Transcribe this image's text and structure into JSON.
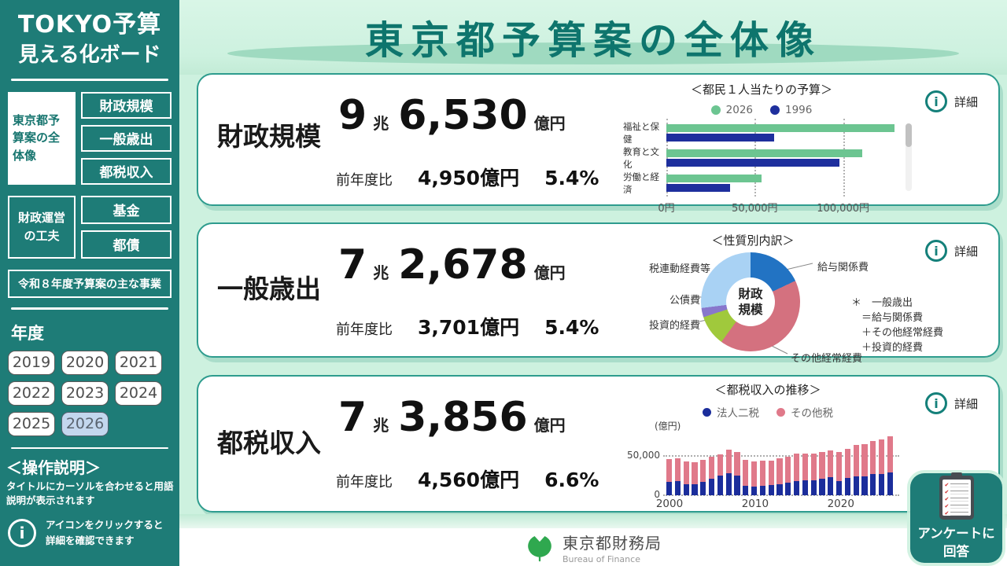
{
  "app": {
    "title_line1": "TOKYO予算",
    "title_line2": "見える化ボード"
  },
  "sidebar": {
    "nav_current": "東京都予算案の全体像",
    "nav_items": [
      "財政規模",
      "一般歳出",
      "都税収入"
    ],
    "nav_group2_label": "財政運営の工夫",
    "nav_group2_items": [
      "基金",
      "都債"
    ],
    "nav_wide_item": "令和８年度予算案の主な事業",
    "year_label": "年度",
    "years": [
      "2019",
      "2020",
      "2021",
      "2022",
      "2023",
      "2024",
      "2025",
      "2026"
    ],
    "selected_year": "2026",
    "help_title": "＜操作説明＞",
    "help_text": "タイトルにカーソルを合わせると用語説明が表示されます",
    "help_icon_text1": "アイコンをクリックすると",
    "help_icon_text2": "詳細を確認できます"
  },
  "header": {
    "title": "東京都予算案の全体像"
  },
  "cards": [
    {
      "label": "財政規模",
      "cho": "9",
      "unit_cho": "兆",
      "oku": "6,530",
      "unit_oku": "億円",
      "yoy_label": "前年度比",
      "yoy_amount": "4,950億円",
      "yoy_pct": "5.4%",
      "detail_label": "詳細"
    },
    {
      "label": "一般歳出",
      "cho": "7",
      "unit_cho": "兆",
      "oku": "2,678",
      "unit_oku": "億円",
      "yoy_label": "前年度比",
      "yoy_amount": "3,701億円",
      "yoy_pct": "5.4%",
      "detail_label": "詳細"
    },
    {
      "label": "都税収入",
      "cho": "7",
      "unit_cho": "兆",
      "oku": "3,856",
      "unit_oku": "億円",
      "yoy_label": "前年度比",
      "yoy_amount": "4,560億円",
      "yoy_pct": "6.6%",
      "detail_label": "詳細"
    }
  ],
  "note": {
    "lines": [
      "＊　一般歳出",
      "＝給与関係費",
      "＋その他経常経費",
      "＋投資的経費"
    ]
  },
  "footer": {
    "org": "東京都財務局",
    "org_en": "Bureau of Finance"
  },
  "survey": {
    "line1": "アンケートに",
    "line2": "回答"
  },
  "colors": {
    "sidebar_teal": "#1E7C77",
    "main_bg": "#CDF1DF",
    "title_teal": "#0E756D",
    "card_border": "#2E9C8E",
    "info_teal": "#14807A",
    "year_selected": "#C3D7EE",
    "logo_green": "#2FA84F"
  },
  "chart_data": [
    {
      "type": "bar",
      "orientation": "horizontal",
      "title": "＜都民１人当たりの予算＞",
      "categories": [
        "福祉と保健",
        "教育と文化",
        "労働と経済"
      ],
      "series": [
        {
          "name": "2026",
          "color": "#6CC591",
          "values": [
            129000,
            111000,
            54000
          ]
        },
        {
          "name": "1996",
          "color": "#1E2F9D",
          "values": [
            61000,
            98000,
            36000
          ]
        }
      ],
      "x_ticks": [
        "0円",
        "50,000円",
        "100,000円"
      ],
      "x_tick_values": [
        0,
        50000,
        100000
      ],
      "xmax": 130000,
      "grid": "dotted-vertical",
      "legend_position": "top",
      "scrollable": true
    },
    {
      "type": "pie",
      "title": "＜性質別内訳＞",
      "center_line1": "財政",
      "center_line2": "規模",
      "slices": [
        {
          "label": "給与関係費",
          "pct": 18,
          "color": "#2273C3"
        },
        {
          "label": "その他経常経費",
          "pct": 42,
          "color": "#D4717F"
        },
        {
          "label": "投資的経費",
          "pct": 10,
          "color": "#A0C93C"
        },
        {
          "label": "公債費",
          "pct": 3,
          "color": "#8877CC"
        },
        {
          "label": "税連動経費等",
          "pct": 27,
          "color": "#A9D2F4"
        }
      ],
      "donut": true
    },
    {
      "type": "bar",
      "stacked": true,
      "title": "＜都税収入の推移＞",
      "ylabel": "(億円)",
      "x": [
        2000,
        2001,
        2002,
        2003,
        2004,
        2005,
        2006,
        2007,
        2008,
        2009,
        2010,
        2011,
        2012,
        2013,
        2014,
        2015,
        2016,
        2017,
        2018,
        2019,
        2020,
        2021,
        2022,
        2023,
        2024,
        2025,
        2026
      ],
      "series": [
        {
          "name": "法人二税",
          "color": "#1B2D9B",
          "values": [
            17000,
            18000,
            14000,
            14000,
            17000,
            21000,
            25000,
            28000,
            25000,
            12000,
            11000,
            12000,
            13000,
            14000,
            16000,
            18000,
            19000,
            18500,
            21000,
            23000,
            17500,
            21500,
            24000,
            24000,
            27000,
            27000,
            28500
          ]
        },
        {
          "name": "その他税",
          "color": "#E0798A",
          "values": [
            28000,
            28000,
            28000,
            27500,
            27000,
            27000,
            26000,
            29000,
            29500,
            32000,
            31500,
            31000,
            30500,
            32500,
            32500,
            34000,
            33000,
            34000,
            33500,
            33500,
            36500,
            36500,
            39000,
            40500,
            41500,
            43500,
            45500
          ]
        }
      ],
      "y_ticks": [
        "0",
        "50,000"
      ],
      "y_tick_values": [
        0,
        50000
      ],
      "ymax": 76000,
      "x_ticks": [
        2000,
        2010,
        2020
      ],
      "grid": "dotted-horizontal-50000",
      "legend_position": "top"
    }
  ]
}
